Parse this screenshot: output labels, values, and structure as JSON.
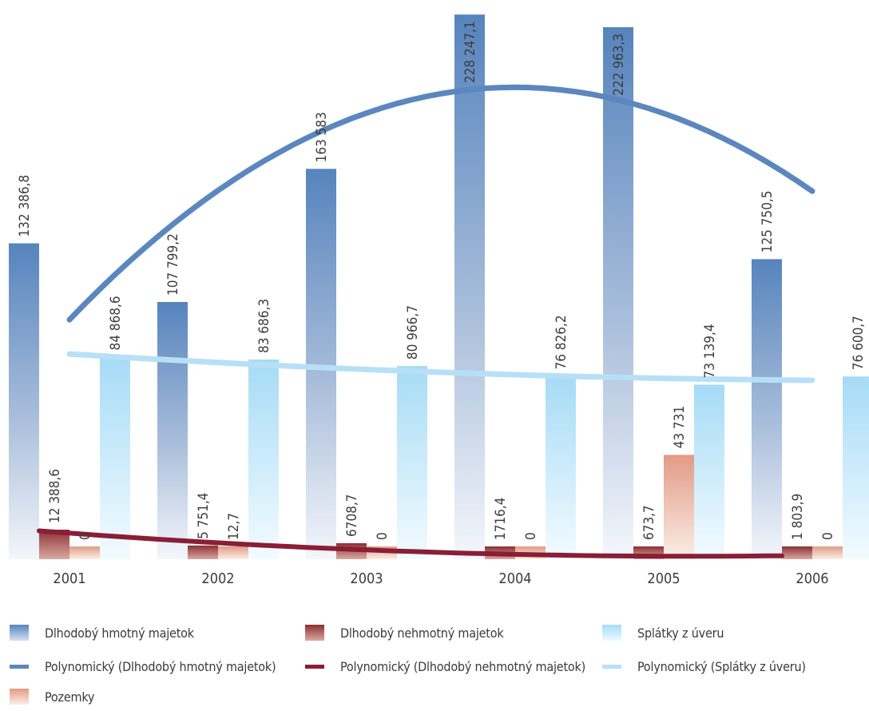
{
  "chart_data": {
    "type": "bar",
    "categories": [
      "2001",
      "2002",
      "2003",
      "2004",
      "2005",
      "2006"
    ],
    "ylim": [
      0,
      230000
    ],
    "series": [
      {
        "name": "Dlhodobý hmotný majetok",
        "color": "#5b87be",
        "values": [
          132386.8,
          107799.2,
          163583,
          228247.1,
          222963.3,
          125750.5
        ],
        "labels": [
          "132 386,8",
          "107 799,2",
          "163 583",
          "228 247,1",
          "222 963,3",
          "125 750,5"
        ]
      },
      {
        "name": "Dlhodobý nehmotný majetok",
        "color": "#8a2e3a",
        "values": [
          12388.6,
          5751.4,
          6708.7,
          1716.4,
          673.7,
          1803.9
        ],
        "labels": [
          "12 388,6",
          "5 751,4",
          "6708,7",
          "1716,4",
          "673,7",
          "1 803,9"
        ]
      },
      {
        "name": "Pozemky",
        "color": "#e8a58f",
        "values": [
          0,
          12.7,
          0,
          0,
          43731,
          0
        ],
        "labels": [
          "0",
          "12,7",
          "0",
          "0",
          "43 731",
          "0"
        ]
      },
      {
        "name": "Splátky z úveru",
        "color": "#a9dbf5",
        "values": [
          84868.6,
          83686.3,
          80966.7,
          76826.2,
          73139.4,
          76600.7
        ],
        "labels": [
          "84 868,6",
          "83 686,3",
          "80 966,7",
          "76 826,2",
          "73 139,4",
          "76 600,7"
        ]
      }
    ],
    "trendlines": [
      {
        "name": "Polynomický (Dlhodobý hmotný majetok)",
        "color": "#5b87be"
      },
      {
        "name": "Polynomický (Dlhodobý nehmotný majetok)",
        "color": "#8a1e36"
      },
      {
        "name": "Polynomický (Splátky z úveru)",
        "color": "#b7e0f7"
      }
    ],
    "grid": false,
    "legend_position": "bottom"
  },
  "legend": {
    "items": [
      {
        "label": "Dlhodobý hmotný majetok",
        "kind": "box",
        "color": "#5b87be"
      },
      {
        "label": "Dlhodobý nehmotný majetok",
        "kind": "box",
        "color": "#8a2e3a"
      },
      {
        "label": "Splátky z úveru",
        "kind": "box",
        "color": "#a9dbf5"
      },
      {
        "label": "Polynomický (Dlhodobý hmotný majetok)",
        "kind": "line",
        "color": "#5b87be"
      },
      {
        "label": "Polynomický (Dlhodobý nehmotný majetok)",
        "kind": "line",
        "color": "#8a1e36"
      },
      {
        "label": "Polynomický (Splátky z úveru)",
        "kind": "line",
        "color": "#b7e0f7"
      },
      {
        "label": "Pozemky",
        "kind": "box",
        "color": "#e8a58f"
      }
    ]
  }
}
